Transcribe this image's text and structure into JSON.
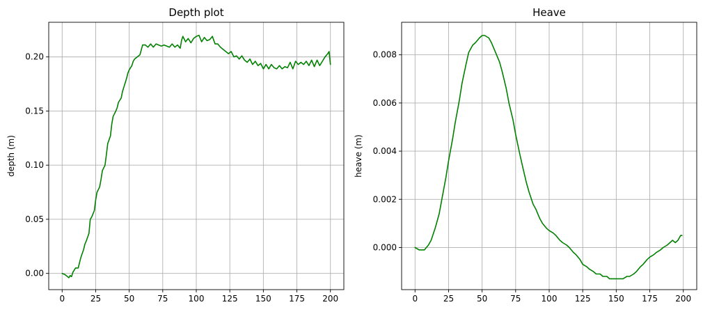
{
  "chart_data": [
    {
      "type": "line",
      "title": "Depth plot",
      "xlabel": "",
      "ylabel": "depth (m)",
      "xlim": [
        -10,
        210
      ],
      "ylim": [
        -0.015,
        0.232
      ],
      "xticks": [
        0,
        25,
        50,
        75,
        100,
        125,
        150,
        175,
        200
      ],
      "xtick_labels": [
        "0",
        "25",
        "50",
        "75",
        "100",
        "125",
        "150",
        "175",
        "200"
      ],
      "yticks": [
        0.0,
        0.05,
        0.1,
        0.15,
        0.2
      ],
      "ytick_labels": [
        "0.00",
        "0.05",
        "0.10",
        "0.15",
        "0.20"
      ],
      "grid": true,
      "color": "#008000",
      "series": [
        {
          "x": [
            0,
            2,
            4,
            5,
            6,
            7,
            8,
            10,
            12,
            13,
            14,
            16,
            17,
            18,
            20,
            21,
            22,
            24,
            25,
            26,
            28,
            29,
            30,
            32,
            33,
            34,
            36,
            37,
            38,
            40,
            41,
            42,
            44,
            45,
            46,
            48,
            49,
            50,
            52,
            53,
            54,
            56,
            57,
            58,
            60,
            62,
            64,
            66,
            68,
            70,
            72,
            74,
            76,
            78,
            80,
            82,
            84,
            86,
            88,
            89,
            90,
            92,
            94,
            96,
            98,
            100,
            102,
            104,
            106,
            108,
            110,
            112,
            114,
            116,
            118,
            120,
            122,
            124,
            126,
            128,
            130,
            132,
            134,
            136,
            138,
            140,
            142,
            144,
            146,
            148,
            150,
            152,
            154,
            156,
            158,
            160,
            162,
            164,
            166,
            168,
            170,
            172,
            174,
            176,
            178,
            180,
            182,
            184,
            186,
            188,
            190,
            192,
            194,
            196,
            198,
            199,
            200
          ],
          "y": [
            0.0,
            -0.001,
            -0.003,
            -0.004,
            -0.002,
            -0.003,
            0.001,
            0.005,
            0.005,
            0.01,
            0.015,
            0.022,
            0.027,
            0.03,
            0.037,
            0.05,
            0.052,
            0.058,
            0.068,
            0.075,
            0.08,
            0.087,
            0.095,
            0.1,
            0.11,
            0.12,
            0.127,
            0.138,
            0.145,
            0.15,
            0.153,
            0.158,
            0.162,
            0.168,
            0.172,
            0.18,
            0.185,
            0.188,
            0.192,
            0.196,
            0.198,
            0.2,
            0.201,
            0.202,
            0.211,
            0.211,
            0.209,
            0.212,
            0.209,
            0.212,
            0.211,
            0.21,
            0.211,
            0.21,
            0.209,
            0.212,
            0.209,
            0.211,
            0.208,
            0.215,
            0.219,
            0.214,
            0.217,
            0.213,
            0.217,
            0.219,
            0.22,
            0.214,
            0.218,
            0.215,
            0.216,
            0.219,
            0.212,
            0.212,
            0.209,
            0.207,
            0.205,
            0.203,
            0.205,
            0.2,
            0.201,
            0.198,
            0.201,
            0.197,
            0.195,
            0.198,
            0.193,
            0.196,
            0.192,
            0.194,
            0.189,
            0.193,
            0.189,
            0.193,
            0.19,
            0.189,
            0.192,
            0.189,
            0.191,
            0.19,
            0.195,
            0.189,
            0.196,
            0.193,
            0.195,
            0.193,
            0.196,
            0.192,
            0.197,
            0.191,
            0.197,
            0.192,
            0.196,
            0.2,
            0.203,
            0.205,
            0.193
          ]
        }
      ]
    },
    {
      "type": "line",
      "title": "Heave",
      "xlabel": "",
      "ylabel": "heave (m)",
      "xlim": [
        -10,
        210
      ],
      "ylim": [
        -0.00175,
        0.00935
      ],
      "xticks": [
        0,
        25,
        50,
        75,
        100,
        125,
        150,
        175,
        200
      ],
      "xtick_labels": [
        "0",
        "25",
        "50",
        "75",
        "100",
        "125",
        "150",
        "175",
        "200"
      ],
      "yticks": [
        0.0,
        0.002,
        0.004,
        0.006,
        0.008
      ],
      "ytick_labels": [
        "0.000",
        "0.002",
        "0.004",
        "0.006",
        "0.008"
      ],
      "grid": true,
      "color": "#008000",
      "series": [
        {
          "x": [
            0,
            3,
            5,
            7,
            10,
            12,
            15,
            18,
            20,
            23,
            25,
            28,
            30,
            33,
            35,
            38,
            40,
            43,
            45,
            48,
            50,
            52,
            55,
            57,
            60,
            63,
            65,
            68,
            70,
            73,
            75,
            78,
            80,
            83,
            85,
            88,
            90,
            93,
            95,
            98,
            100,
            103,
            105,
            108,
            110,
            113,
            115,
            118,
            120,
            123,
            125,
            128,
            130,
            133,
            135,
            138,
            140,
            143,
            145,
            148,
            150,
            153,
            155,
            158,
            160,
            163,
            165,
            168,
            170,
            173,
            175,
            178,
            180,
            183,
            185,
            188,
            190,
            192,
            194,
            196,
            198,
            199
          ],
          "y": [
            0.0,
            -0.0001,
            -0.0001,
            -0.0001,
            0.0001,
            0.0003,
            0.0008,
            0.0014,
            0.002,
            0.0029,
            0.0036,
            0.0045,
            0.0052,
            0.0061,
            0.0068,
            0.0076,
            0.0081,
            0.0084,
            0.0085,
            0.0087,
            0.0088,
            0.0088,
            0.0087,
            0.0085,
            0.0081,
            0.0077,
            0.0073,
            0.0066,
            0.006,
            0.0053,
            0.0047,
            0.0039,
            0.0034,
            0.0027,
            0.0023,
            0.0018,
            0.0016,
            0.0012,
            0.001,
            0.0008,
            0.0007,
            0.0006,
            0.0005,
            0.0003,
            0.0002,
            0.0001,
            0.0,
            -0.0002,
            -0.0003,
            -0.0005,
            -0.0007,
            -0.0008,
            -0.0009,
            -0.001,
            -0.0011,
            -0.0011,
            -0.0012,
            -0.0012,
            -0.0013,
            -0.0013,
            -0.0013,
            -0.0013,
            -0.0013,
            -0.0012,
            -0.0012,
            -0.0011,
            -0.001,
            -0.0008,
            -0.0007,
            -0.0005,
            -0.0004,
            -0.0003,
            -0.0002,
            -0.0001,
            0.0,
            0.0001,
            0.0002,
            0.0003,
            0.0002,
            0.0003,
            0.0005,
            0.0005
          ]
        }
      ]
    }
  ]
}
